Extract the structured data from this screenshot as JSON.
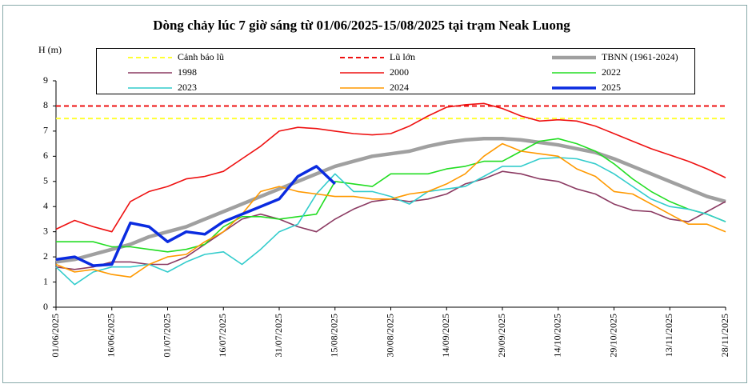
{
  "chart_data": {
    "type": "line",
    "title": "Dòng chảy lúc 7 giờ sáng từ 01/06/2025-15/08/2025 tại trạm Neak Luong",
    "y_label": "H (m)",
    "categories": [
      "01/06/2025",
      null,
      null,
      "16/06/2025",
      null,
      null,
      "01/07/2025",
      null,
      null,
      "16/07/2025",
      null,
      null,
      "31/07/2025",
      null,
      null,
      "15/08/2025",
      null,
      null,
      "30/08/2025",
      null,
      null,
      "14/09/2025",
      null,
      null,
      "29/09/2025",
      null,
      null,
      "14/10/2025",
      null,
      null,
      "29/10/2025",
      null,
      null,
      "13/11/2025",
      null,
      null,
      "28/11/2025"
    ],
    "ylim": [
      0,
      9
    ],
    "yticks": [
      0,
      1,
      2,
      3,
      4,
      5,
      6,
      7,
      8,
      9
    ],
    "hlines": [
      {
        "name": "Cảnh báo lũ",
        "value": 7.5,
        "color": "#ffff33"
      },
      {
        "name": "Lũ lớn",
        "value": 8,
        "color": "#ee1111"
      }
    ],
    "series": [
      {
        "name": "TBNN (1961-2024)",
        "color": "#a0a0a0",
        "width": 4.5,
        "values": [
          1.8,
          1.9,
          2.1,
          2.3,
          2.5,
          2.8,
          3.0,
          3.2,
          3.5,
          3.8,
          4.1,
          4.4,
          4.7,
          5.0,
          5.3,
          5.6,
          5.8,
          6.0,
          6.1,
          6.2,
          6.4,
          6.55,
          6.65,
          6.7,
          6.7,
          6.65,
          6.55,
          6.45,
          6.3,
          6.15,
          5.9,
          5.6,
          5.3,
          5.0,
          4.7,
          4.4,
          4.2
        ]
      },
      {
        "name": "1998",
        "color": "#8b3a62",
        "width": 1.6,
        "values": [
          1.6,
          1.5,
          1.6,
          1.8,
          1.8,
          1.7,
          1.7,
          2.0,
          2.5,
          3.0,
          3.5,
          3.7,
          3.5,
          3.2,
          3.0,
          3.5,
          3.9,
          4.2,
          4.3,
          4.2,
          4.3,
          4.5,
          4.9,
          5.1,
          5.4,
          5.3,
          5.1,
          5.0,
          4.7,
          4.5,
          4.1,
          3.85,
          3.8,
          3.5,
          3.4,
          3.8,
          4.2
        ]
      },
      {
        "name": "2000",
        "color": "#ee1111",
        "width": 1.6,
        "values": [
          3.1,
          3.45,
          3.2,
          3.0,
          4.2,
          4.6,
          4.8,
          5.1,
          5.2,
          5.4,
          5.9,
          6.4,
          7.0,
          7.15,
          7.1,
          7.0,
          6.9,
          6.85,
          6.9,
          7.2,
          7.6,
          7.95,
          8.05,
          8.1,
          7.9,
          7.6,
          7.4,
          7.45,
          7.4,
          7.2,
          6.9,
          6.6,
          6.3,
          6.05,
          5.8,
          5.5,
          5.15
        ]
      },
      {
        "name": "2022",
        "color": "#22dd22",
        "width": 1.6,
        "values": [
          2.6,
          2.6,
          2.6,
          2.4,
          2.4,
          2.3,
          2.2,
          2.3,
          2.5,
          3.2,
          3.6,
          3.6,
          3.5,
          3.6,
          3.7,
          5.0,
          4.9,
          4.8,
          5.3,
          5.3,
          5.3,
          5.5,
          5.6,
          5.8,
          5.8,
          6.2,
          6.6,
          6.7,
          6.5,
          6.2,
          5.7,
          5.1,
          4.6,
          4.2,
          3.9,
          3.7,
          3.4
        ]
      },
      {
        "name": "2023",
        "color": "#33cccc",
        "width": 1.6,
        "values": [
          1.6,
          0.9,
          1.4,
          1.6,
          1.6,
          1.7,
          1.4,
          1.8,
          2.1,
          2.2,
          1.7,
          2.3,
          3.0,
          3.3,
          4.5,
          5.3,
          4.6,
          4.6,
          4.4,
          4.1,
          4.6,
          4.7,
          4.8,
          5.2,
          5.6,
          5.6,
          5.9,
          5.95,
          5.9,
          5.7,
          5.3,
          4.8,
          4.3,
          4.0,
          3.9,
          3.7,
          3.4
        ]
      },
      {
        "name": "2024",
        "color": "#ff9900",
        "width": 1.6,
        "values": [
          1.7,
          1.4,
          1.5,
          1.3,
          1.2,
          1.7,
          2.0,
          2.1,
          2.6,
          3.0,
          3.7,
          4.6,
          4.8,
          4.6,
          4.5,
          4.4,
          4.4,
          4.3,
          4.3,
          4.5,
          4.6,
          4.9,
          5.3,
          6.0,
          6.5,
          6.2,
          6.1,
          6.0,
          5.5,
          5.2,
          4.6,
          4.5,
          4.1,
          3.7,
          3.3,
          3.3,
          3.0
        ]
      },
      {
        "name": "2025",
        "color": "#0a2be0",
        "width": 3.5,
        "values": [
          1.9,
          2.0,
          1.65,
          1.7,
          3.35,
          3.2,
          2.6,
          3.0,
          2.9,
          3.4,
          3.7,
          4.0,
          4.3,
          5.2,
          5.6,
          4.9,
          null,
          null,
          null,
          null,
          null,
          null,
          null,
          null,
          null,
          null,
          null,
          null,
          null,
          null,
          null,
          null,
          null,
          null,
          null,
          null,
          null
        ]
      }
    ]
  }
}
